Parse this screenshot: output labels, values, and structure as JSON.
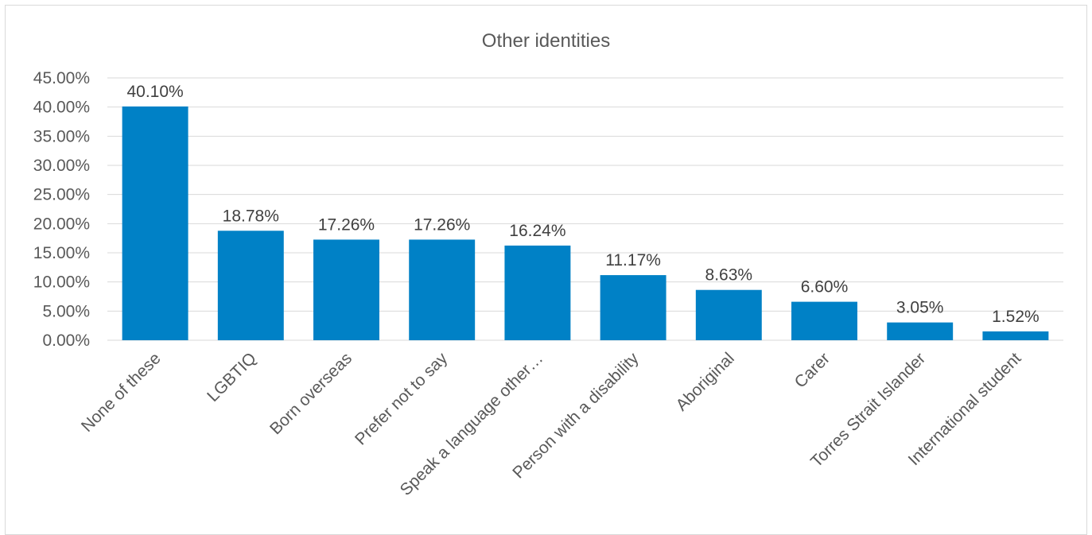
{
  "chart_data": {
    "type": "bar",
    "title": "Other identities",
    "xlabel": "",
    "ylabel": "",
    "categories": [
      "None of these",
      "LGBTIQ",
      "Born overseas",
      "Prefer not to say",
      "Speak a language other…",
      "Person with a disability",
      "Aboriginal",
      "Carer",
      "Torres Strait Islander",
      "International student"
    ],
    "values": [
      40.1,
      18.78,
      17.26,
      17.26,
      16.24,
      11.17,
      8.63,
      6.6,
      3.05,
      1.52
    ],
    "data_labels": [
      "40.10%",
      "18.78%",
      "17.26%",
      "17.26%",
      "16.24%",
      "11.17%",
      "8.63%",
      "6.60%",
      "3.05%",
      "1.52%"
    ],
    "ylim": [
      0,
      45
    ],
    "y_ticks": [
      "0.00%",
      "5.00%",
      "10.00%",
      "15.00%",
      "20.00%",
      "25.00%",
      "30.00%",
      "35.00%",
      "40.00%",
      "45.00%"
    ],
    "grid": true,
    "legend": "none",
    "bar_color": "#0081C6",
    "grid_color": "#D9D9D9"
  }
}
